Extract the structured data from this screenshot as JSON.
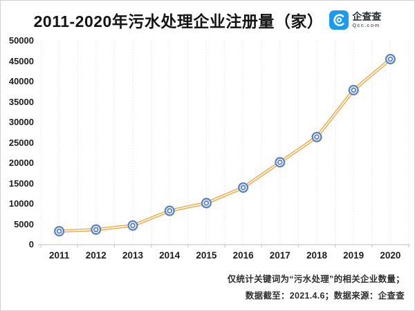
{
  "header": {
    "title": "2011-2020年污水处理企业注册量（家）",
    "logo": {
      "name": "企查查",
      "domain": "Qcc.com",
      "brand_color": "#1B9BF0"
    }
  },
  "chart_data": {
    "type": "line",
    "title": "2011-2020年污水处理企业注册量（家）",
    "categories": [
      "2011",
      "2012",
      "2013",
      "2014",
      "2015",
      "2016",
      "2017",
      "2018",
      "2019",
      "2020"
    ],
    "series": [
      {
        "name": "污水处理企业注册量",
        "values": [
          3300,
          3700,
          4700,
          8300,
          10200,
          14000,
          20200,
          26400,
          37900,
          45500
        ]
      }
    ],
    "xlabel": "",
    "ylabel": "",
    "ylim": [
      0,
      50000
    ],
    "y_ticks": [
      0,
      5000,
      10000,
      15000,
      20000,
      25000,
      30000,
      35000,
      40000,
      45000,
      50000
    ],
    "grid": "vertical-dotted",
    "legend": "none",
    "line_color": "#F2A43C",
    "line_inner_color": "#FFFFFF",
    "marker_color": "#5B82C8",
    "axis_color": "#C9C9C9",
    "grid_color": "#E3E3E3"
  },
  "footnotes": {
    "line1": "仅统计关键词为“污水处理”的相关企业数量；",
    "line2": "数据截至：2021.4.6；数据来源：企查查"
  }
}
